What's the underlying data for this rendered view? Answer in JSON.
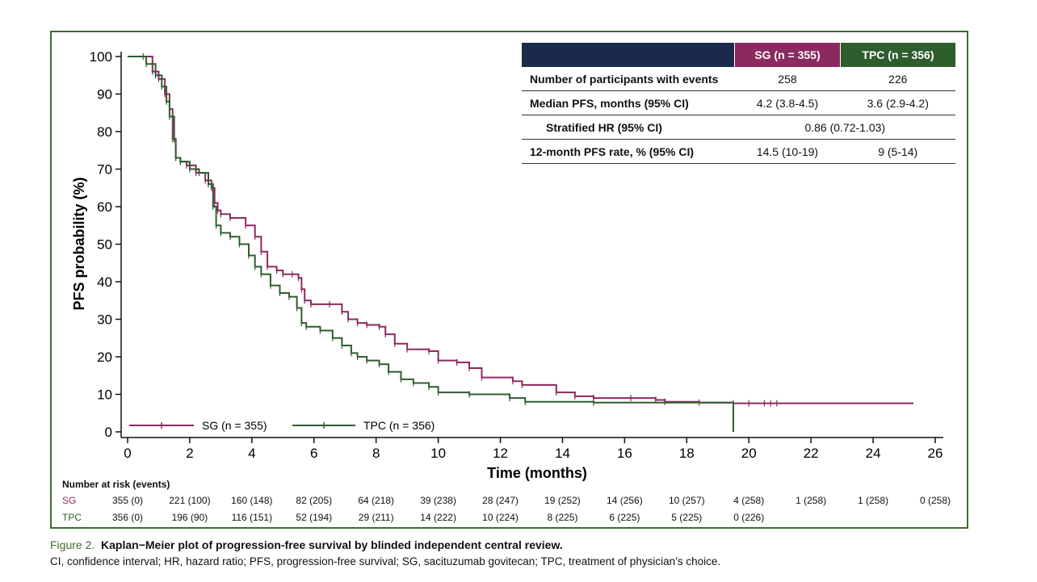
{
  "chart_data": {
    "type": "line",
    "subtype": "kaplan-meier",
    "xlabel": "Time (months)",
    "ylabel": "PFS probability (%)",
    "xlim": [
      0,
      26
    ],
    "ylim": [
      0,
      100
    ],
    "xticks": [
      0,
      2,
      4,
      6,
      8,
      10,
      12,
      14,
      16,
      18,
      20,
      22,
      24,
      26
    ],
    "yticks": [
      0,
      10,
      20,
      30,
      40,
      50,
      60,
      70,
      80,
      90,
      100
    ],
    "grid": false,
    "legend_position": "bottom-left",
    "series": [
      {
        "name": "SG (n = 355)",
        "color": "#8b2a5e",
        "x": [
          0,
          0.5,
          0.8,
          1.0,
          1.2,
          1.35,
          1.45,
          1.55,
          1.7,
          1.9,
          2.2,
          2.5,
          2.7,
          2.8,
          2.9,
          3.0,
          3.3,
          3.8,
          4.1,
          4.3,
          4.5,
          4.8,
          5.0,
          5.3,
          5.5,
          5.6,
          5.7,
          5.9,
          6.5,
          6.9,
          7.1,
          7.4,
          7.7,
          8.1,
          8.3,
          8.6,
          9.0,
          9.7,
          10.0,
          10.6,
          11.0,
          11.4,
          12.4,
          12.7,
          13.8,
          14.4,
          15.0,
          16.2,
          17.0,
          17.3,
          18.4,
          19.5,
          20.5,
          25.3
        ],
        "y": [
          100,
          100,
          96,
          94,
          90,
          86,
          78,
          73,
          72,
          71,
          69,
          67,
          65,
          61,
          59,
          58,
          57,
          55,
          52,
          48,
          44,
          43,
          42,
          42,
          41,
          38,
          35,
          34,
          34,
          32,
          30,
          29,
          28.5,
          28,
          26,
          23.5,
          22,
          21.5,
          19,
          18.5,
          17,
          14.5,
          13.5,
          12.5,
          10.5,
          9.5,
          9,
          9,
          8.5,
          8,
          7.8,
          7.6,
          7.6,
          7.6
        ]
      },
      {
        "name": "TPC (n = 356)",
        "color": "#2e5d2e",
        "x": [
          0,
          0.6,
          0.9,
          1.1,
          1.25,
          1.35,
          1.5,
          1.55,
          1.7,
          2.0,
          2.3,
          2.6,
          2.75,
          2.85,
          3.0,
          3.3,
          3.6,
          3.9,
          4.1,
          4.3,
          4.6,
          4.9,
          5.2,
          5.45,
          5.6,
          5.75,
          6.2,
          6.6,
          6.9,
          7.2,
          7.4,
          7.7,
          8.1,
          8.4,
          8.8,
          9.2,
          9.7,
          10.0,
          11.0,
          12.3,
          12.8,
          15.0,
          19.5
        ],
        "y": [
          100,
          98,
          95,
          92,
          88,
          84,
          78,
          73,
          72,
          70,
          69,
          66,
          60,
          55,
          53,
          52,
          50,
          47,
          44,
          42,
          39,
          37,
          36,
          33,
          29,
          28,
          27,
          25,
          23,
          21,
          20,
          19,
          18,
          16,
          14,
          13,
          12,
          10.5,
          10,
          9,
          8,
          7.8,
          0
        ]
      }
    ],
    "number_at_risk": {
      "title": "Number at risk (events)",
      "rows": [
        {
          "label": "SG",
          "values": [
            "355 (0)",
            "221 (100)",
            "160 (148)",
            "82 (205)",
            "64 (218)",
            "39 (238)",
            "28 (247)",
            "19 (252)",
            "14 (256)",
            "10 (257)",
            "4 (258)",
            "1 (258)",
            "1 (258)",
            "0 (258)"
          ]
        },
        {
          "label": "TPC",
          "values": [
            "356 (0)",
            "196 (90)",
            "116 (151)",
            "52 (194)",
            "29 (211)",
            "14 (222)",
            "10 (224)",
            "8 (225)",
            "6 (225)",
            "5 (225)",
            "0 (226)"
          ]
        }
      ]
    }
  },
  "table": {
    "header_sg": "SG (n = 355)",
    "header_tpc": "TPC (n = 356)",
    "rows": [
      {
        "label": "Number of participants with events",
        "sg": "258",
        "tpc": "226"
      },
      {
        "label": "Median PFS, months (95% CI)",
        "sg": "4.2 (3.8-4.5)",
        "tpc": "3.6 (2.9-4.2)"
      },
      {
        "label": "Stratified HR (95% CI)",
        "combined": "0.86 (0.72-1.03)"
      },
      {
        "label": "12-month PFS rate, % (95% CI)",
        "sg": "14.5 (10-19)",
        "tpc": "9 (5-14)"
      }
    ]
  },
  "caption": {
    "label": "Figure 2.",
    "title": "Kaplan−Meier plot of progression-free survival by blinded independent central review.",
    "footnote": "CI, confidence interval; HR, hazard ratio; PFS, progression-free survival; SG, sacituzumab govitecan; TPC, treatment of physician’s choice."
  },
  "colors": {
    "frame": "#3f6b34",
    "header_dark": "#1b2a4a",
    "sg": "#8b2a5e",
    "tpc": "#2e5d2e"
  }
}
